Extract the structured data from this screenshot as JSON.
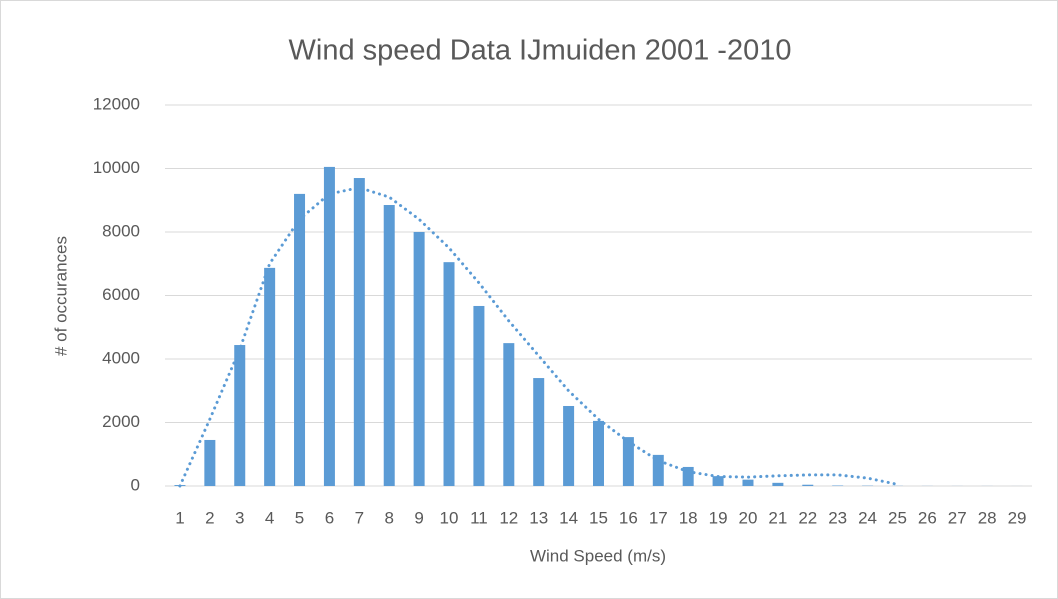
{
  "chart_data": {
    "type": "bar",
    "title": "Wind speed Data IJmuiden 2001 -2010",
    "x_label": "Wind Speed (m/s)",
    "y_label": "# of occurances",
    "categories": [
      "1",
      "2",
      "3",
      "4",
      "5",
      "6",
      "7",
      "8",
      "9",
      "10",
      "11",
      "12",
      "13",
      "14",
      "15",
      "16",
      "17",
      "18",
      "19",
      "20",
      "21",
      "22",
      "23",
      "24",
      "25",
      "26",
      "27",
      "28",
      "29"
    ],
    "values": [
      30,
      1450,
      4440,
      6870,
      9200,
      10050,
      9700,
      8850,
      8000,
      7050,
      5670,
      4500,
      3400,
      2520,
      2050,
      1540,
      980,
      600,
      310,
      200,
      100,
      40,
      15,
      10,
      5,
      3,
      2,
      2,
      1
    ],
    "color": "#5b9bd5",
    "trendline": {
      "style": "dotted",
      "color": "#5b9bd5",
      "values": [
        0,
        2100,
        4300,
        7000,
        8400,
        9200,
        9400,
        9100,
        8400,
        7500,
        6400,
        5200,
        4100,
        3000,
        2100,
        1400,
        800,
        450,
        300,
        280,
        320,
        350,
        350,
        250,
        50,
        null,
        null,
        null,
        200
      ]
    },
    "ylim": [
      0,
      12000
    ],
    "yticks": [
      0,
      2000,
      4000,
      6000,
      8000,
      10000,
      12000
    ],
    "grid": true
  }
}
